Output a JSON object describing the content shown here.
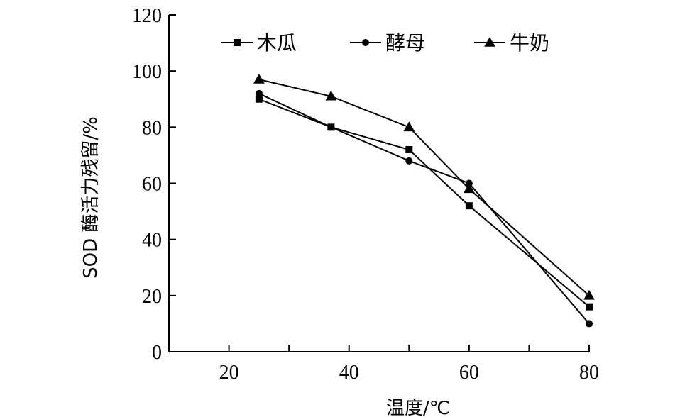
{
  "chart_data": {
    "type": "line",
    "xlabel": "温度/℃",
    "ylabel": "SOD 酶活力残留/%",
    "xlim": [
      10,
      80
    ],
    "ylim": [
      0,
      120
    ],
    "x_ticks": [
      20,
      40,
      60,
      80
    ],
    "y_ticks": [
      0,
      20,
      40,
      60,
      80,
      100,
      120
    ],
    "grid": false,
    "legend_position": "top",
    "series": [
      {
        "name": "木瓜",
        "marker": "square",
        "x": [
          25,
          37,
          50,
          60,
          80
        ],
        "y": [
          90,
          80,
          72,
          52,
          16
        ]
      },
      {
        "name": "酵母",
        "marker": "circle",
        "x": [
          25,
          37,
          50,
          60,
          80
        ],
        "y": [
          92,
          80,
          68,
          60,
          10
        ]
      },
      {
        "name": "牛奶",
        "marker": "triangle",
        "x": [
          25,
          37,
          50,
          60,
          80
        ],
        "y": [
          97,
          91,
          80,
          58,
          20
        ]
      }
    ]
  }
}
